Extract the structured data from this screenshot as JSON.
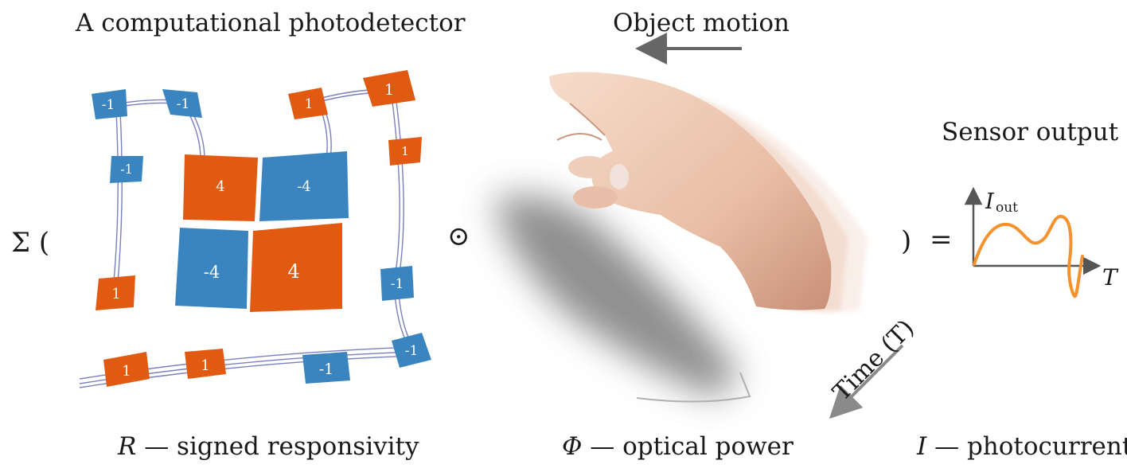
{
  "header": {
    "detector_title": "A computational photodetector",
    "motion_label": "Object motion",
    "sensor_output_label": "Sensor output"
  },
  "equation": {
    "sum": "Σ (",
    "odot": "⊙",
    "close_paren": ")",
    "equals": "="
  },
  "detector": {
    "tiles": [
      "-1",
      "-1",
      "1",
      "1",
      "-1",
      "1",
      "4",
      "-4",
      "-4",
      "4",
      "1",
      "-1",
      "1",
      "1",
      "-1",
      "-1"
    ],
    "colors": {
      "positive": "#e05a12",
      "negative": "#3a85c0",
      "wire": "#7a7fc0"
    }
  },
  "plot": {
    "y_symbol": "I",
    "y_subscript": "out",
    "x_symbol": "T",
    "curve_color": "#f5922e"
  },
  "time_axis": {
    "label": "Time (T)"
  },
  "captions": {
    "r_symbol": "R",
    "r_text": "— signed responsivity",
    "phi_symbol": "Φ",
    "phi_text": "— optical power",
    "i_symbol": "I",
    "i_text": "— photocurrent"
  }
}
